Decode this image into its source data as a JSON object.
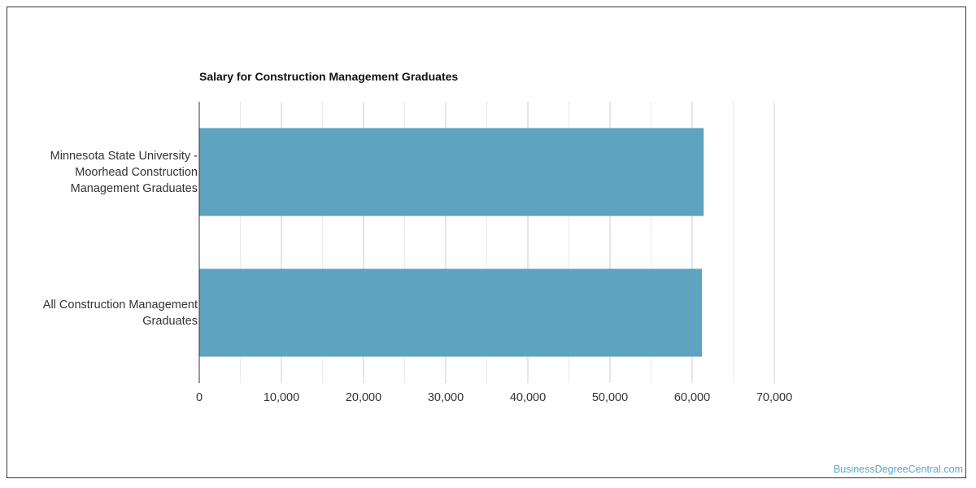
{
  "chart_data": {
    "type": "bar",
    "orientation": "horizontal",
    "title": "Salary for Construction Management Graduates",
    "xlabel": "",
    "ylabel": "",
    "categories": [
      [
        "Minnesota State University -",
        "Moorhead Construction",
        "Management Graduates"
      ],
      [
        "All Construction Management",
        "Graduates"
      ]
    ],
    "values": [
      61400,
      61200
    ],
    "xlim": [
      0,
      70000
    ],
    "ticks": [
      "0",
      "10,000",
      "20,000",
      "30,000",
      "40,000",
      "50,000",
      "60,000",
      "70,000"
    ],
    "tick_values": [
      0,
      10000,
      20000,
      30000,
      40000,
      50000,
      60000,
      70000
    ],
    "grid": true,
    "bar_color": "#5ea3bf"
  },
  "footer": {
    "watermark": "BusinessDegreeCentral.com"
  }
}
